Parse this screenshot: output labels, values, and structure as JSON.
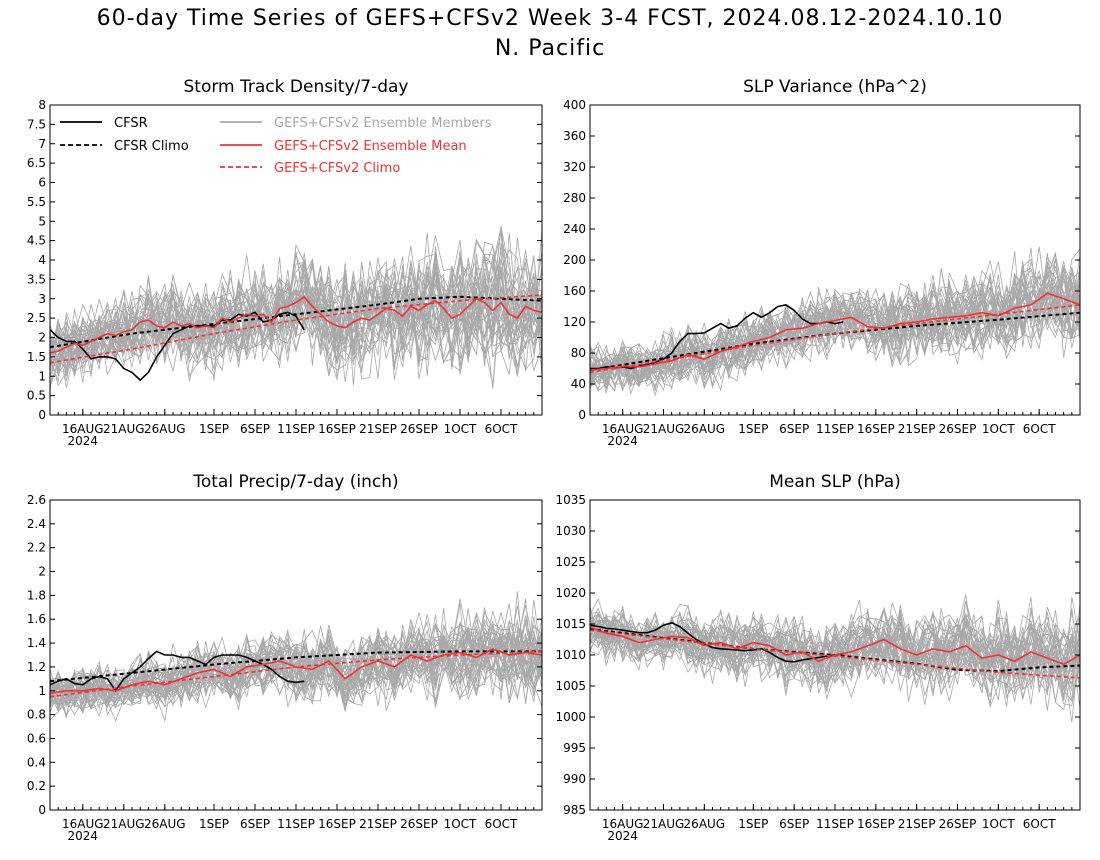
{
  "title_line1": "60-day Time Series of GEFS+CFSv2 Week 3-4 FCST, 2024.08.12-2024.10.10",
  "title_line2": "N. Pacific",
  "colors": {
    "cfsr": "#000000",
    "ensemble_members": "#a8a8a8",
    "ensemble_mean": "#f03232",
    "gefs_climo": "#f03232"
  },
  "legend": {
    "cfsr": "CFSR",
    "cfsr_climo": "CFSR Climo",
    "members": "GEFS+CFSv2 Ensemble Members",
    "mean": "GEFS+CFSv2 Ensemble Mean",
    "gefs_climo": "GEFS+CFSv2 Climo"
  },
  "x_axis": {
    "day_range": [
      0,
      60
    ],
    "ticks": [
      {
        "day": 4,
        "label": "16AUG"
      },
      {
        "day": 9,
        "label": "21AUG"
      },
      {
        "day": 14,
        "label": "26AUG"
      },
      {
        "day": 20,
        "label": "1SEP"
      },
      {
        "day": 25,
        "label": "6SEP"
      },
      {
        "day": 30,
        "label": "11SEP"
      },
      {
        "day": 35,
        "label": "16SEP"
      },
      {
        "day": 40,
        "label": "21SEP"
      },
      {
        "day": 45,
        "label": "26SEP"
      },
      {
        "day": 50,
        "label": "1OCT"
      },
      {
        "day": 55,
        "label": "6OCT"
      }
    ],
    "year_label": "2024"
  },
  "chart_data": [
    {
      "type": "line",
      "title": "Storm Track Density/7-day",
      "ylim": [
        0,
        8
      ],
      "yticks": [
        "0",
        "0.5",
        "1",
        "1.5",
        "2",
        "2.5",
        "3",
        "3.5",
        "4",
        "4.5",
        "5",
        "5.5",
        "6",
        "6.5",
        "7",
        "7.5",
        "8"
      ],
      "ytick_values": [
        0,
        0.5,
        1,
        1.5,
        2,
        2.5,
        3,
        3.5,
        4,
        4.5,
        5,
        5.5,
        6,
        6.5,
        7,
        7.5,
        8
      ],
      "series": [
        {
          "name": "CFSR",
          "x": [
            0,
            1,
            2,
            3,
            4,
            5,
            6,
            7,
            8,
            9,
            10,
            11,
            12,
            13,
            14,
            15,
            16,
            17,
            18,
            19,
            20,
            21,
            22,
            23,
            24,
            25,
            26,
            27,
            28,
            29,
            30,
            31
          ],
          "y": [
            2.2,
            2.0,
            1.9,
            1.9,
            1.7,
            1.45,
            1.5,
            1.5,
            1.45,
            1.2,
            1.1,
            0.9,
            1.1,
            1.5,
            1.8,
            2.1,
            2.2,
            2.3,
            2.3,
            2.3,
            2.3,
            2.45,
            2.45,
            2.6,
            2.55,
            2.65,
            2.4,
            2.45,
            2.6,
            2.65,
            2.55,
            2.2
          ]
        },
        {
          "name": "CFSR Climo",
          "x": [
            0,
            10,
            20,
            30,
            40,
            45,
            50,
            55,
            60
          ],
          "y": [
            1.75,
            2.1,
            2.35,
            2.6,
            2.85,
            3.0,
            3.05,
            3.0,
            2.95
          ]
        },
        {
          "name": "GEFS+CFSv2 Ensemble Mean",
          "x": [
            0,
            1,
            2,
            3,
            4,
            5,
            6,
            7,
            8,
            9,
            10,
            11,
            12,
            13,
            14,
            15,
            16,
            17,
            18,
            19,
            20,
            21,
            22,
            23,
            24,
            25,
            26,
            27,
            28,
            29,
            30,
            31,
            32,
            33,
            34,
            35,
            36,
            37,
            38,
            39,
            40,
            41,
            42,
            43,
            44,
            45,
            46,
            47,
            48,
            49,
            50,
            51,
            52,
            53,
            54,
            55,
            56,
            57,
            58,
            59,
            60
          ],
          "y": [
            1.6,
            1.65,
            1.75,
            1.85,
            1.8,
            1.9,
            2.0,
            2.1,
            2.05,
            2.15,
            2.2,
            2.4,
            2.45,
            2.3,
            2.25,
            2.4,
            2.3,
            2.35,
            2.25,
            2.3,
            2.25,
            2.5,
            2.4,
            2.5,
            2.6,
            2.55,
            2.6,
            2.4,
            2.75,
            2.8,
            2.9,
            3.05,
            2.8,
            2.6,
            2.4,
            2.3,
            2.25,
            2.4,
            2.5,
            2.45,
            2.6,
            2.75,
            2.7,
            2.55,
            2.8,
            2.7,
            2.85,
            2.95,
            2.75,
            2.5,
            2.6,
            2.8,
            3.0,
            2.9,
            2.7,
            2.9,
            2.6,
            2.5,
            2.8,
            2.7,
            2.65
          ]
        },
        {
          "name": "GEFS+CFSv2 Climo",
          "x": [
            0,
            10,
            20,
            30,
            40,
            50,
            60
          ],
          "y": [
            1.35,
            1.7,
            2.1,
            2.45,
            2.75,
            2.95,
            3.1
          ]
        }
      ],
      "members": {
        "count": 40,
        "spread": 1.0
      }
    },
    {
      "type": "line",
      "title": "SLP Variance (hPa^2)",
      "ylim": [
        0,
        400
      ],
      "yticks": [
        "0",
        "40",
        "80",
        "120",
        "160",
        "200",
        "240",
        "280",
        "320",
        "360",
        "400"
      ],
      "ytick_values": [
        0,
        40,
        80,
        120,
        160,
        200,
        240,
        280,
        320,
        360,
        400
      ],
      "series": [
        {
          "name": "CFSR",
          "x": [
            0,
            1,
            2,
            3,
            4,
            5,
            6,
            7,
            8,
            9,
            10,
            11,
            12,
            13,
            14,
            15,
            16,
            17,
            18,
            19,
            20,
            21,
            22,
            23,
            24,
            25,
            26,
            27,
            28,
            29,
            30,
            31
          ],
          "y": [
            60,
            60,
            62,
            61,
            62,
            60,
            63,
            65,
            68,
            72,
            80,
            95,
            105,
            105,
            106,
            112,
            118,
            112,
            115,
            125,
            132,
            126,
            132,
            140,
            142,
            135,
            124,
            118,
            118,
            120,
            118,
            120
          ]
        },
        {
          "name": "CFSR Climo",
          "x": [
            0,
            10,
            20,
            30,
            40,
            50,
            60
          ],
          "y": [
            58,
            75,
            92,
            105,
            115,
            123,
            132
          ]
        },
        {
          "name": "GEFS+CFSv2 Ensemble Mean",
          "x": [
            0,
            2,
            4,
            6,
            8,
            10,
            12,
            14,
            16,
            18,
            20,
            22,
            24,
            26,
            28,
            30,
            32,
            34,
            36,
            38,
            40,
            42,
            44,
            46,
            48,
            50,
            52,
            54,
            56,
            58,
            60
          ],
          "y": [
            58,
            60,
            63,
            62,
            66,
            70,
            78,
            72,
            82,
            88,
            95,
            100,
            110,
            112,
            118,
            122,
            126,
            114,
            112,
            118,
            120,
            124,
            126,
            128,
            132,
            128,
            138,
            142,
            157,
            150,
            142
          ]
        },
        {
          "name": "GEFS+CFSv2 Climo",
          "x": [
            0,
            10,
            20,
            30,
            40,
            50,
            60
          ],
          "y": [
            55,
            72,
            90,
            105,
            118,
            130,
            142
          ]
        }
      ],
      "members": {
        "count": 40,
        "spread": 35
      }
    },
    {
      "type": "line",
      "title": "Total Precip/7-day (inch)",
      "ylim": [
        0,
        2.6
      ],
      "yticks": [
        "0",
        "0.2",
        "0.4",
        "0.6",
        "0.8",
        "1",
        "1.2",
        "1.4",
        "1.6",
        "1.8",
        "2",
        "2.2",
        "2.4",
        "2.6"
      ],
      "ytick_values": [
        0,
        0.2,
        0.4,
        0.6,
        0.8,
        1,
        1.2,
        1.4,
        1.6,
        1.8,
        2,
        2.2,
        2.4,
        2.6
      ],
      "series": [
        {
          "name": "CFSR",
          "x": [
            0,
            1,
            2,
            3,
            4,
            5,
            6,
            7,
            8,
            9,
            10,
            11,
            12,
            13,
            14,
            15,
            16,
            17,
            18,
            19,
            20,
            21,
            22,
            23,
            24,
            25,
            26,
            27,
            28,
            29,
            30,
            31
          ],
          "y": [
            1.05,
            1.08,
            1.1,
            1.06,
            1.05,
            1.1,
            1.12,
            1.1,
            1.0,
            1.1,
            1.15,
            1.2,
            1.27,
            1.33,
            1.3,
            1.3,
            1.28,
            1.28,
            1.25,
            1.22,
            1.28,
            1.3,
            1.3,
            1.3,
            1.28,
            1.25,
            1.22,
            1.18,
            1.12,
            1.08,
            1.07,
            1.08
          ]
        },
        {
          "name": "CFSR Climo",
          "x": [
            0,
            10,
            20,
            30,
            40,
            50,
            60
          ],
          "y": [
            1.08,
            1.15,
            1.22,
            1.28,
            1.32,
            1.33,
            1.33
          ]
        },
        {
          "name": "GEFS+CFSv2 Ensemble Mean",
          "x": [
            0,
            2,
            4,
            6,
            8,
            10,
            12,
            14,
            16,
            18,
            20,
            22,
            24,
            26,
            28,
            30,
            32,
            34,
            36,
            38,
            40,
            42,
            44,
            46,
            48,
            50,
            52,
            54,
            56,
            58,
            60
          ],
          "y": [
            0.98,
            1.0,
            1.0,
            1.02,
            1.0,
            1.05,
            1.08,
            1.05,
            1.1,
            1.15,
            1.18,
            1.12,
            1.2,
            1.22,
            1.25,
            1.2,
            1.18,
            1.25,
            1.1,
            1.2,
            1.25,
            1.2,
            1.3,
            1.25,
            1.3,
            1.32,
            1.28,
            1.35,
            1.3,
            1.32,
            1.3
          ]
        },
        {
          "name": "GEFS+CFSv2 Climo",
          "x": [
            0,
            10,
            20,
            30,
            40,
            50,
            60
          ],
          "y": [
            0.95,
            1.04,
            1.12,
            1.2,
            1.26,
            1.3,
            1.33
          ]
        }
      ],
      "members": {
        "count": 40,
        "spread": 0.22
      }
    },
    {
      "type": "line",
      "title": "Mean SLP (hPa)",
      "ylim": [
        985,
        1035
      ],
      "yticks": [
        "985",
        "990",
        "995",
        "1000",
        "1005",
        "1010",
        "1015",
        "1020",
        "1025",
        "1030",
        "1035"
      ],
      "ytick_values": [
        985,
        990,
        995,
        1000,
        1005,
        1010,
        1015,
        1020,
        1025,
        1030,
        1035
      ],
      "series": [
        {
          "name": "CFSR",
          "x": [
            0,
            1,
            2,
            3,
            4,
            5,
            6,
            7,
            8,
            9,
            10,
            11,
            12,
            13,
            14,
            15,
            16,
            17,
            18,
            19,
            20,
            21,
            22,
            23,
            24,
            25,
            26,
            27,
            28,
            29,
            30,
            31
          ],
          "y": [
            1014.8,
            1014.6,
            1014.3,
            1014.2,
            1014.0,
            1013.8,
            1013.6,
            1013.6,
            1014.0,
            1014.8,
            1015.2,
            1014.6,
            1013.5,
            1012.5,
            1011.8,
            1011.2,
            1011.0,
            1010.9,
            1010.8,
            1010.7,
            1010.8,
            1011.0,
            1010.4,
            1009.6,
            1009.0,
            1008.9,
            1009.2,
            1009.4,
            1009.6,
            1009.8,
            1010.0,
            1010.2
          ]
        },
        {
          "name": "CFSR Climo",
          "x": [
            0,
            10,
            20,
            30,
            40,
            45,
            50,
            55,
            60
          ],
          "y": [
            1014.2,
            1012.6,
            1011.0,
            1010.0,
            1008.6,
            1007.6,
            1007.4,
            1008.0,
            1008.3
          ]
        },
        {
          "name": "GEFS+CFSv2 Ensemble Mean",
          "x": [
            0,
            2,
            4,
            6,
            8,
            10,
            12,
            14,
            16,
            18,
            20,
            22,
            24,
            26,
            28,
            30,
            32,
            34,
            36,
            38,
            40,
            42,
            44,
            46,
            48,
            50,
            52,
            54,
            56,
            58,
            60
          ],
          "y": [
            1014.5,
            1013.5,
            1013.0,
            1012.0,
            1012.5,
            1013.0,
            1012.8,
            1011.5,
            1012.0,
            1011.0,
            1012.0,
            1011.5,
            1010.0,
            1010.5,
            1009.0,
            1010.0,
            1010.5,
            1011.5,
            1012.5,
            1011.0,
            1010.0,
            1011.0,
            1010.5,
            1011.5,
            1009.5,
            1010.0,
            1009.0,
            1010.5,
            1009.5,
            1008.5,
            1010.0
          ]
        },
        {
          "name": "GEFS+CFSv2 Climo",
          "x": [
            0,
            10,
            20,
            30,
            40,
            50,
            60
          ],
          "y": [
            1014.0,
            1012.5,
            1011.0,
            1009.8,
            1008.5,
            1007.2,
            1006.3
          ]
        }
      ],
      "members": {
        "count": 40,
        "spread": 4.5
      }
    }
  ]
}
